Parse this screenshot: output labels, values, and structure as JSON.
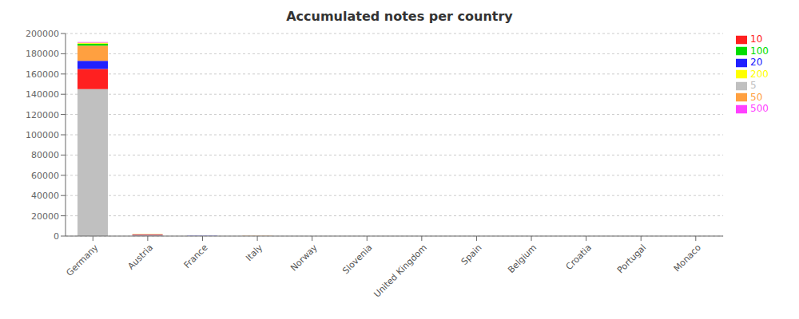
{
  "chart_data": {
    "type": "bar",
    "title": "Accumulated notes per country",
    "stacked": true,
    "categories": [
      "Germany",
      "Austria",
      "France",
      "Italy",
      "Norway",
      "Slovenia",
      "United Kingdom",
      "Spain",
      "Belgium",
      "Croatia",
      "Portugal",
      "Monaco"
    ],
    "series": [
      {
        "name": "5",
        "color": "#c0c0c0",
        "values": [
          145000,
          700,
          50,
          40,
          20,
          10,
          15,
          10,
          10,
          8,
          8,
          5
        ]
      },
      {
        "name": "10",
        "color": "#ff2020",
        "values": [
          20000,
          600,
          30,
          25,
          12,
          6,
          10,
          5,
          5,
          5,
          5,
          2
        ]
      },
      {
        "name": "20",
        "color": "#2020ff",
        "values": [
          8000,
          200,
          20,
          18,
          8,
          4,
          8,
          4,
          4,
          3,
          3,
          1
        ]
      },
      {
        "name": "50",
        "color": "#ffa040",
        "values": [
          15000,
          300,
          25,
          22,
          10,
          5,
          8,
          4,
          4,
          3,
          3,
          1
        ]
      },
      {
        "name": "100",
        "color": "#00dd00",
        "values": [
          2000,
          60,
          6,
          5,
          2,
          1,
          2,
          1,
          1,
          1,
          1,
          1
        ]
      },
      {
        "name": "200",
        "color": "#ffff00",
        "values": [
          1000,
          30,
          3,
          3,
          1,
          1,
          1,
          1,
          1,
          1,
          1,
          1
        ]
      },
      {
        "name": "500",
        "color": "#ff40ff",
        "values": [
          500,
          20,
          2,
          2,
          1,
          1,
          1,
          1,
          1,
          1,
          1,
          1
        ]
      }
    ],
    "ylim": [
      0,
      200000
    ],
    "yticks": [
      0,
      20000,
      40000,
      60000,
      80000,
      100000,
      120000,
      140000,
      160000,
      180000,
      200000
    ],
    "grid": true,
    "legend": "right"
  }
}
